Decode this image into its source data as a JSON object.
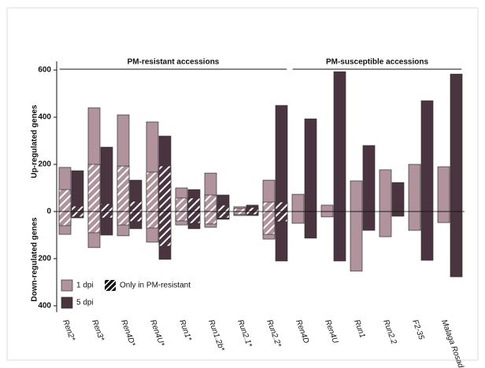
{
  "chart_data": {
    "type": "diverging-bar",
    "y_label_up": "Up-regulated genes",
    "y_label_down": "Down-regulated genes",
    "groups": [
      {
        "label": "PM-resistant accessions",
        "from": 0,
        "to": 7
      },
      {
        "label": "PM-susceptible accessions",
        "from": 8,
        "to": 13
      }
    ],
    "categories": [
      "Ren2*",
      "Ren3*",
      "Ren4D*",
      "Ren4U*",
      "Run1*",
      "Run1.2b*",
      "Run2.1*",
      "Run2.2*",
      "Ren4D",
      "Ren4U",
      "Run1",
      "Run2.2",
      "F2-35",
      "Malaga Rosada"
    ],
    "series": [
      {
        "name": "1 dpi",
        "color": "#b0939c",
        "up": [
          187,
          440,
          410,
          380,
          100,
          163,
          20,
          133,
          73,
          27,
          130,
          177,
          200,
          190
        ],
        "down": [
          -97,
          -153,
          -103,
          -130,
          -57,
          -67,
          -17,
          -117,
          -50,
          -23,
          -253,
          -107,
          -80,
          -47
        ]
      },
      {
        "name": "5 dpi",
        "color": "#4a3440",
        "up": [
          173,
          273,
          133,
          320,
          93,
          70,
          27,
          450,
          393,
          593,
          280,
          123,
          470,
          583
        ],
        "down": [
          -27,
          -100,
          -73,
          -203,
          -73,
          -33,
          -17,
          -210,
          -113,
          -210,
          -80,
          -20,
          -207,
          -277
        ]
      }
    ],
    "hatched": {
      "name": "Only in PM-resistant",
      "color": "#ffffff",
      "series": [
        {
          "up": [
            93,
            200,
            193,
            167,
            57,
            70,
            13,
            40,
            null,
            null,
            null,
            null,
            null,
            null
          ],
          "down": [
            -60,
            -90,
            -57,
            -70,
            -40,
            -53,
            -13,
            -97,
            null,
            null,
            null,
            null,
            null,
            null
          ]
        },
        {
          "up": [
            23,
            33,
            43,
            193,
            57,
            27,
            17,
            40,
            null,
            null,
            null,
            null,
            null,
            null
          ],
          "down": [
            -23,
            -27,
            -43,
            -147,
            -50,
            -27,
            -13,
            -43,
            null,
            null,
            null,
            null,
            null,
            null
          ]
        }
      ]
    },
    "ylim": [
      -427,
      637
    ],
    "yticks": [
      600,
      400,
      200,
      0,
      {
        "value": -200,
        "label": "200"
      },
      {
        "value": -400,
        "label": "400"
      }
    ]
  }
}
